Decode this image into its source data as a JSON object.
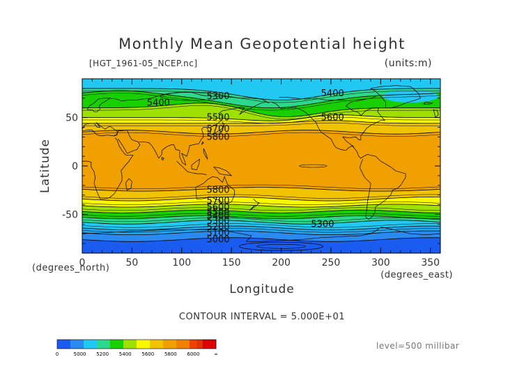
{
  "chart_data": {
    "type": "contour",
    "title": "Monthly Mean Geopotential height",
    "file_label": "[HGT_1961-05_NCEP.nc]",
    "units_label": "(units:m)",
    "xlabel": "Longitude",
    "ylabel": "Latitude",
    "x_unit_label": "(degrees_east)",
    "y_unit_label": "(degrees_north)",
    "xlim": [
      0,
      360
    ],
    "ylim": [
      -90,
      90
    ],
    "x_ticks": [
      0,
      50,
      100,
      150,
      200,
      250,
      300,
      350
    ],
    "y_ticks": [
      50,
      0,
      -50
    ],
    "contour_interval_text": "CONTOUR INTERVAL = 5.000E+01",
    "level_text": "level=500 millibar",
    "contour_labels": [
      {
        "text": "5300",
        "lon": 125,
        "lat": 72
      },
      {
        "text": "5400",
        "lon": 65,
        "lat": 65
      },
      {
        "text": "5400",
        "lon": 240,
        "lat": 75
      },
      {
        "text": "5500",
        "lon": 125,
        "lat": 50
      },
      {
        "text": "5600",
        "lon": 240,
        "lat": 50
      },
      {
        "text": "5700",
        "lon": 125,
        "lat": 38
      },
      {
        "text": "5800",
        "lon": 125,
        "lat": 30
      },
      {
        "text": "5800",
        "lon": 125,
        "lat": -25
      },
      {
        "text": "5700",
        "lon": 125,
        "lat": -36
      },
      {
        "text": "5600",
        "lon": 125,
        "lat": -43
      },
      {
        "text": "5500",
        "lon": 125,
        "lat": -48
      },
      {
        "text": "5400",
        "lon": 125,
        "lat": -52
      },
      {
        "text": "5300",
        "lon": 125,
        "lat": -57
      },
      {
        "text": "5200",
        "lon": 125,
        "lat": -63
      },
      {
        "text": "5100",
        "lon": 125,
        "lat": -69
      },
      {
        "text": "5000",
        "lon": 125,
        "lat": -76
      },
      {
        "text": "5300",
        "lon": 230,
        "lat": -60
      }
    ],
    "colorbar": {
      "tick_labels": [
        "0",
        "5000",
        "5200",
        "5400",
        "5600",
        "5800",
        "6000",
        "∞"
      ],
      "colors": [
        "#1a5cf0",
        "#2b8af0",
        "#21c8f2",
        "#2bd88c",
        "#18d000",
        "#9fe000",
        "#f8f800",
        "#f0c200",
        "#f0a000",
        "#f08000",
        "#f04000",
        "#f00000"
      ]
    },
    "fill_colors": {
      "band_5000": "#1a5cf0",
      "band_5100": "#2b8af0",
      "band_5200": "#21a8ee",
      "band_5300": "#21c8f2",
      "band_5400": "#2bd88c",
      "band_5500": "#18d000",
      "band_5600": "#9fe000",
      "band_5700": "#f8f800",
      "band_5800": "#f0c200",
      "band_5850": "#f0a000"
    },
    "legend": "bottom"
  }
}
